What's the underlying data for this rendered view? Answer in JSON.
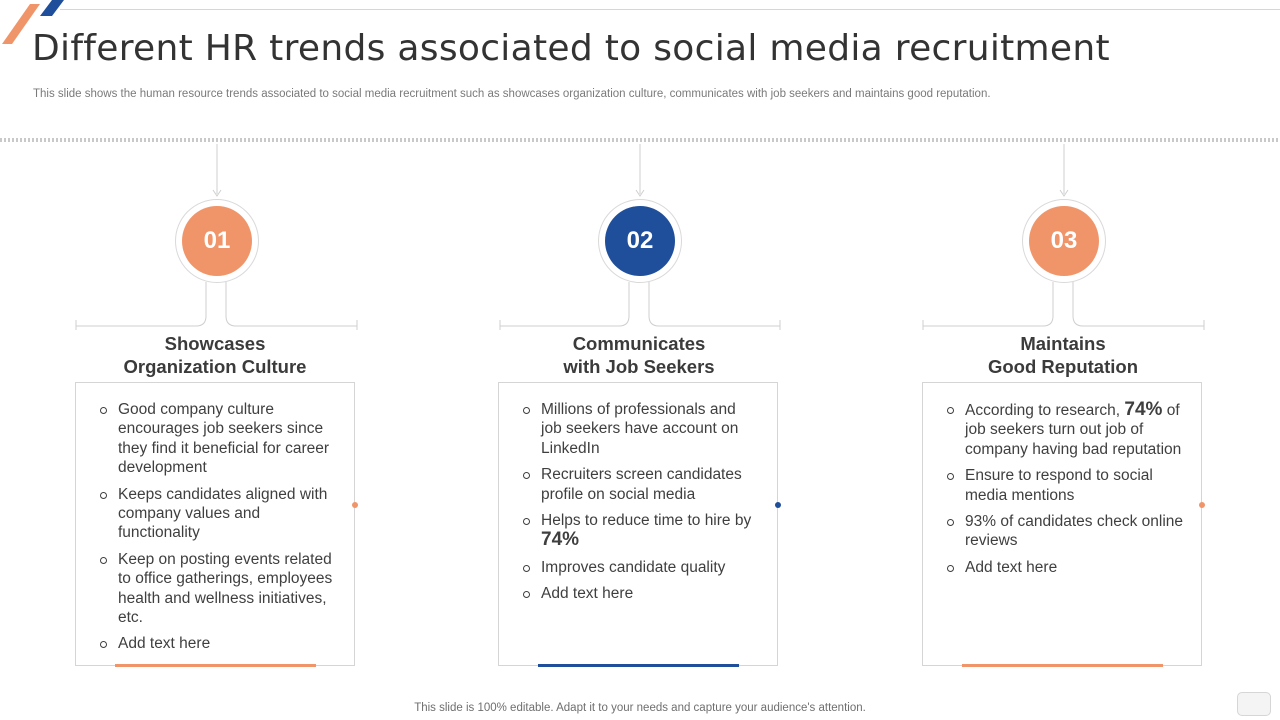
{
  "slide": {
    "title": "Different HR trends associated to social media recruitment",
    "subtitle": "This slide shows the human resource trends associated to social media recruitment such as showcases organization culture, communicates with job seekers and maintains good reputation.",
    "footer": "This slide is 100% editable. Adapt it to your needs and capture your audience's attention."
  },
  "colors": {
    "orange": "#f0956a",
    "blue": "#1f4e9a",
    "border": "#d5d5d5",
    "text": "#3b3b3b"
  },
  "columns": [
    {
      "number": "01",
      "accent": "orange",
      "title_line1": "Showcases",
      "title_line2": "Organization Culture",
      "items": [
        {
          "text": "Good company culture encourages job seekers since they find it beneficial for career development"
        },
        {
          "text": "Keeps candidates aligned with company values and functionality"
        },
        {
          "text": "Keep on posting events related to office gatherings, employees health and wellness initiatives, etc."
        },
        {
          "text": "Add text here"
        }
      ]
    },
    {
      "number": "02",
      "accent": "blue",
      "title_line1": "Communicates",
      "title_line2": "with Job Seekers",
      "items": [
        {
          "text": "Millions of professionals and job seekers have account on LinkedIn"
        },
        {
          "text": "Recruiters screen candidates profile on social media"
        },
        {
          "before": "Helps to reduce time to hire by ",
          "big": "74%"
        },
        {
          "text": "Improves candidate quality"
        },
        {
          "text": "Add text here"
        }
      ]
    },
    {
      "number": "03",
      "accent": "orange",
      "title_line1": "Maintains",
      "title_line2": "Good Reputation",
      "items": [
        {
          "before": "According to research, ",
          "big": "74%",
          "after": " of job seekers turn out job of company having bad reputation"
        },
        {
          "text": "Ensure to respond to social media mentions"
        },
        {
          "text": "93% of candidates check online reviews"
        },
        {
          "text": "Add text here"
        }
      ]
    }
  ]
}
